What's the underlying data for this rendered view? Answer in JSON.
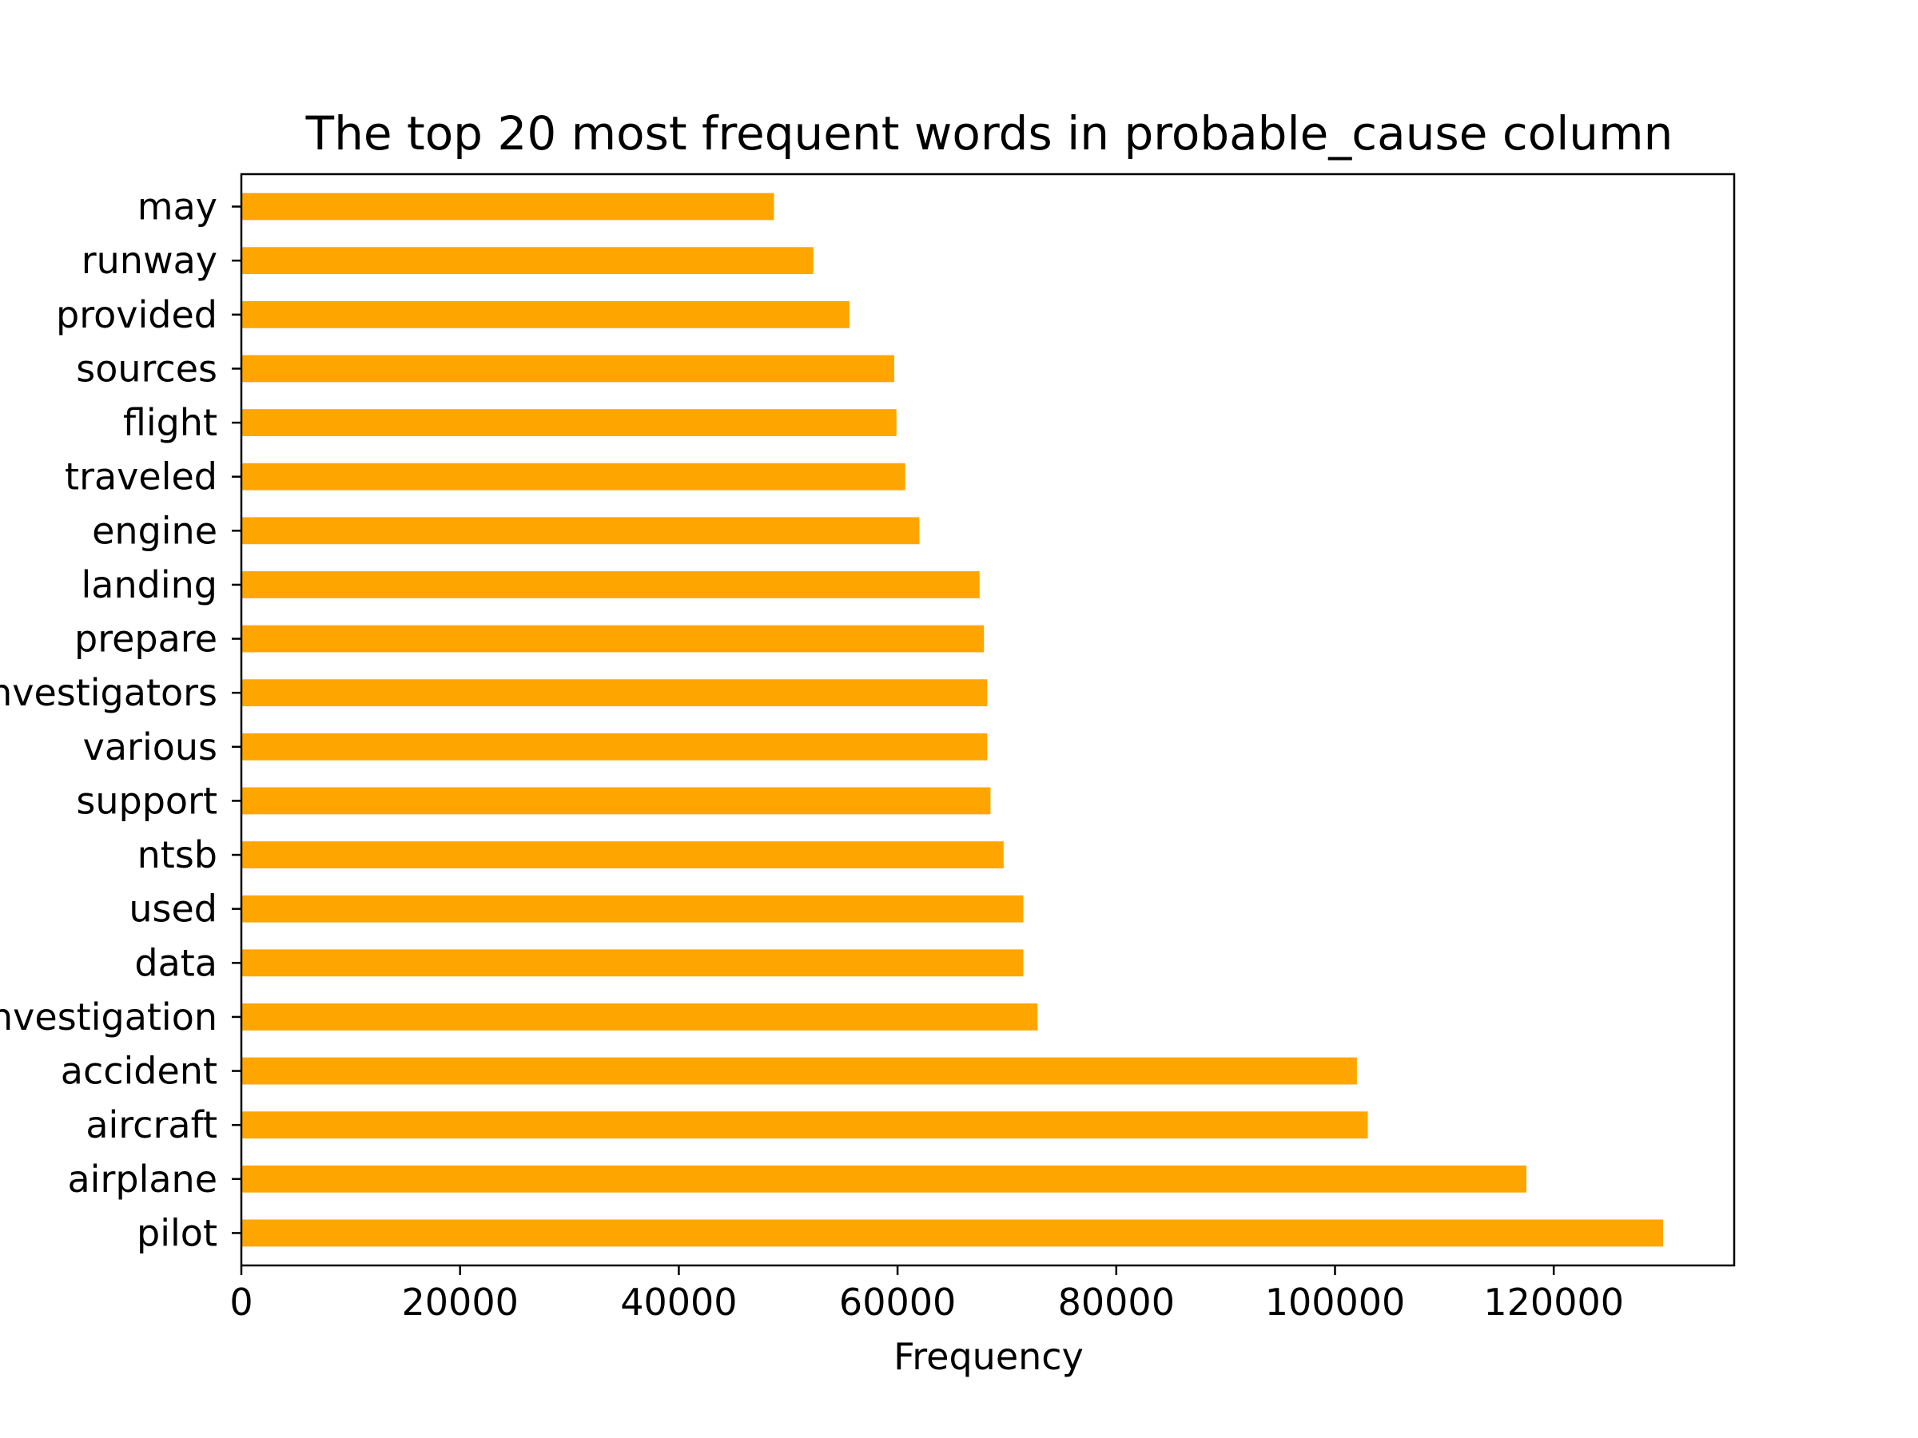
{
  "chart_data": {
    "type": "bar",
    "orientation": "horizontal",
    "title": "The top 20 most frequent words in probable_cause column",
    "xlabel": "Frequency",
    "ylabel": "",
    "categories": [
      "pilot",
      "airplane",
      "aircraft",
      "accident",
      "investigation",
      "data",
      "used",
      "ntsb",
      "support",
      "various",
      "investigators",
      "prepare",
      "landing",
      "engine",
      "traveled",
      "flight",
      "sources",
      "provided",
      "runway",
      "may"
    ],
    "values": [
      130000,
      117500,
      103000,
      102000,
      72800,
      71500,
      71500,
      69700,
      68500,
      68200,
      68200,
      67900,
      67500,
      62000,
      60700,
      59900,
      59700,
      55600,
      52300,
      48700
    ],
    "xlim": [
      0,
      136500
    ],
    "xticks": [
      "0",
      "20000",
      "40000",
      "60000",
      "80000",
      "100000",
      "120000"
    ],
    "bar_color": "#ffa500",
    "grid": false,
    "legend": "none"
  }
}
